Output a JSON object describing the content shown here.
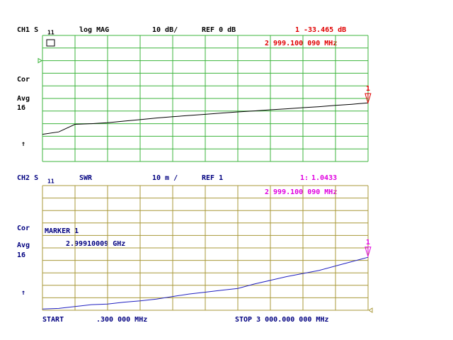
{
  "chart_data": [
    {
      "type": "line",
      "channel": "CH1 S",
      "parameter": "11",
      "format": "log MAG",
      "scale": "10 dB/",
      "reference": "REF 0 dB",
      "ref_value": 0,
      "status": [
        "Cor",
        "Avg",
        "16",
        "↑"
      ],
      "grid": true,
      "grid_color": "#3cb43c",
      "text_color": "#000000",
      "marker_color": "#e00000",
      "xlim": [
        0.3,
        3000
      ],
      "xticks": [
        0.3,
        300.27,
        600.24,
        900.21,
        1200.18,
        1500.15,
        1800.12,
        2100.09,
        2400.06,
        2700.03,
        3000
      ],
      "ylim": [
        -80,
        20
      ],
      "yticks": [
        -80,
        -70,
        -60,
        -50,
        -40,
        -30,
        -20,
        -10,
        0,
        10,
        20
      ],
      "x": [
        0.3,
        150,
        300,
        450,
        600,
        750,
        900,
        1050,
        1200,
        1350,
        1500,
        1650,
        1800,
        1950,
        2100,
        2250,
        2400,
        2550,
        2700,
        2850,
        3000
      ],
      "series": [
        {
          "color": "#000000",
          "values": [
            -58.4,
            -56.5,
            -50.5,
            -50.0,
            -49.2,
            -48.0,
            -46.8,
            -45.5,
            -44.5,
            -43.5,
            -42.6,
            -41.6,
            -40.7,
            -39.9,
            -39.0,
            -38.2,
            -37.3,
            -36.5,
            -35.5,
            -34.6,
            -33.5
          ]
        }
      ],
      "marker": {
        "label": "1",
        "value": -33.465,
        "value_label": "-33.465 dB",
        "x": 2999.10009,
        "x_label": "2 999.100 090 MHz"
      }
    },
    {
      "type": "line",
      "channel": "CH2 S",
      "parameter": "11",
      "format": "SWR",
      "scale": "10 m /",
      "reference": "REF 1",
      "ref_value": 1,
      "status": [
        "Cor",
        "Avg",
        "16",
        "↑"
      ],
      "grid": true,
      "grid_color": "#a89838",
      "text_color": "#000080",
      "marker_color": "#e000e0",
      "xlim": [
        0.3,
        3000
      ],
      "xticks": [
        0.3,
        300.27,
        600.24,
        900.21,
        1200.18,
        1500.15,
        1800.12,
        2100.09,
        2400.06,
        2700.03,
        3000
      ],
      "ylim": [
        1,
        1.1
      ],
      "yticks": [
        1,
        1.01,
        1.02,
        1.03,
        1.04,
        1.05,
        1.06,
        1.07,
        1.08,
        1.09,
        1.1
      ],
      "x": [
        0.3,
        150,
        300,
        450,
        600,
        750,
        900,
        1050,
        1200,
        1350,
        1500,
        1650,
        1800,
        1950,
        2100,
        2250,
        2400,
        2550,
        2700,
        2850,
        3000
      ],
      "series": [
        {
          "color": "#2020c0",
          "values": [
            1.001,
            1.0015,
            1.003,
            1.0045,
            1.005,
            1.0065,
            1.0075,
            1.009,
            1.011,
            1.013,
            1.0145,
            1.016,
            1.0175,
            1.021,
            1.024,
            1.027,
            1.0295,
            1.032,
            1.0355,
            1.039,
            1.0425
          ]
        }
      ],
      "marker": {
        "label": "1",
        "header_label": "1:",
        "value": 1.0433,
        "x": 2999.10009,
        "x_label": "2 999.100 090 MHz",
        "readout_title": "MARKER 1",
        "readout_x": "2.99910009 GHz"
      },
      "start_label": "START",
      "start_value_label": ".300 000 MHz",
      "stop_label": "STOP 3 000.000 000 MHz"
    }
  ]
}
